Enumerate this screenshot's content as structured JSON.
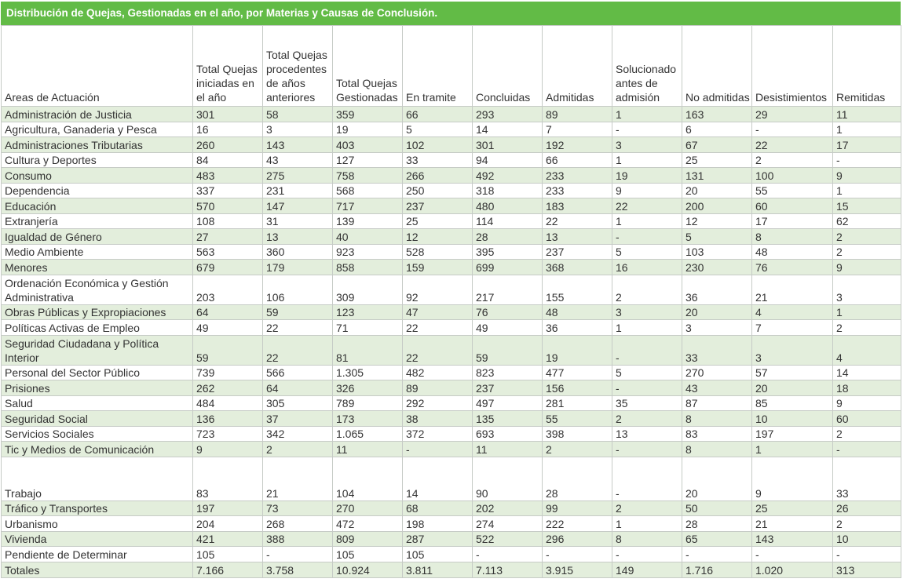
{
  "title": "Distribución de Quejas, Gestionadas en el año, por Materias y Causas de Conclusión.",
  "colors": {
    "header_bg": "#62bb46",
    "row_shade": "#e3eedc",
    "grid": "#c6cbc6"
  },
  "columns": [
    "Areas de Actuación",
    "Total Quejas iniciadas en el año",
    "Total Quejas procedentes de años anteriores",
    "Total Quejas Gestionadas",
    "En tramite",
    "Concluidas",
    "Admitidas",
    "Solucionado antes de admisión",
    "No admitidas",
    "Desistimientos",
    "Remitidas"
  ],
  "rows": [
    [
      "Administración de Justicia",
      "301",
      "58",
      "359",
      "66",
      "293",
      "89",
      "1",
      "163",
      "29",
      "11"
    ],
    [
      "Agricultura, Ganaderia y Pesca",
      "16",
      "3",
      "19",
      "5",
      "14",
      "7",
      "-",
      "6",
      "-",
      "1"
    ],
    [
      "Administraciones Tributarias",
      "260",
      "143",
      "403",
      "102",
      "301",
      "192",
      "3",
      "67",
      "22",
      "17"
    ],
    [
      "Cultura y Deportes",
      "84",
      "43",
      "127",
      "33",
      "94",
      "66",
      "1",
      "25",
      "2",
      "-"
    ],
    [
      "Consumo",
      "483",
      "275",
      "758",
      "266",
      "492",
      "233",
      "19",
      "131",
      "100",
      "9"
    ],
    [
      "Dependencia",
      "337",
      "231",
      "568",
      "250",
      "318",
      "233",
      "9",
      "20",
      "55",
      "1"
    ],
    [
      "Educación",
      "570",
      "147",
      "717",
      "237",
      "480",
      "183",
      "22",
      "200",
      "60",
      "15"
    ],
    [
      "Extranjería",
      "108",
      "31",
      "139",
      "25",
      "114",
      "22",
      "1",
      "12",
      "17",
      "62"
    ],
    [
      "Igualdad de Género",
      "27",
      "13",
      "40",
      "12",
      "28",
      "13",
      "-",
      "5",
      "8",
      "2"
    ],
    [
      "Medio Ambiente",
      "563",
      "360",
      "923",
      "528",
      "395",
      "237",
      "5",
      "103",
      "48",
      "2"
    ],
    [
      "Menores",
      "679",
      "179",
      "858",
      "159",
      "699",
      "368",
      "16",
      "230",
      "76",
      "9"
    ],
    [
      "Ordenación Económica y Gestión Administrativa",
      "203",
      "106",
      "309",
      "92",
      "217",
      "155",
      "2",
      "36",
      "21",
      "3"
    ],
    [
      "Obras Públicas y Expropiaciones",
      "64",
      "59",
      "123",
      "47",
      "76",
      "48",
      "3",
      "20",
      "4",
      "1"
    ],
    [
      "Políticas Activas de Empleo",
      "49",
      "22",
      "71",
      "22",
      "49",
      "36",
      "1",
      "3",
      "7",
      "2"
    ],
    [
      "Seguridad Ciudadana y Política Interior",
      "59",
      "22",
      "81",
      "22",
      "59",
      "19",
      "-",
      "33",
      "3",
      "4"
    ],
    [
      "Personal del Sector Público",
      "739",
      "566",
      "1.305",
      "482",
      "823",
      "477",
      "5",
      "270",
      "57",
      "14"
    ],
    [
      "Prisiones",
      "262",
      "64",
      "326",
      "89",
      "237",
      "156",
      "-",
      "43",
      "20",
      "18"
    ],
    [
      "Salud",
      "484",
      "305",
      "789",
      "292",
      "497",
      "281",
      "35",
      "87",
      "85",
      "9"
    ],
    [
      "Seguridad Social",
      "136",
      "37",
      "173",
      "38",
      "135",
      "55",
      "2",
      "8",
      "10",
      "60"
    ],
    [
      "Servicios Sociales",
      "723",
      "342",
      "1.065",
      "372",
      "693",
      "398",
      "13",
      "83",
      "197",
      "2"
    ],
    [
      "Tic y Medios de Comunicación",
      "9",
      "2",
      "11",
      "-",
      "11",
      "2",
      "-",
      "8",
      "1",
      "-"
    ],
    [
      "Trabajo",
      "83",
      "21",
      "104",
      "14",
      "90",
      "28",
      "-",
      "20",
      "9",
      "33"
    ],
    [
      "Tráfico y Transportes",
      "197",
      "73",
      "270",
      "68",
      "202",
      "99",
      "2",
      "50",
      "25",
      "26"
    ],
    [
      "Urbanismo",
      "204",
      "268",
      "472",
      "198",
      "274",
      "222",
      "1",
      "28",
      "21",
      "2"
    ],
    [
      "Vivienda",
      "421",
      "388",
      "809",
      "287",
      "522",
      "296",
      "8",
      "65",
      "143",
      "10"
    ],
    [
      "Pendiente de Determinar",
      "105",
      "-",
      "105",
      "105",
      "-",
      "-",
      "-",
      "-",
      "-",
      "-"
    ],
    [
      "Totales",
      "7.166",
      "3.758",
      "10.924",
      "3.811",
      "7.113",
      "3.915",
      "149",
      "1.716",
      "1.020",
      "313"
    ]
  ]
}
